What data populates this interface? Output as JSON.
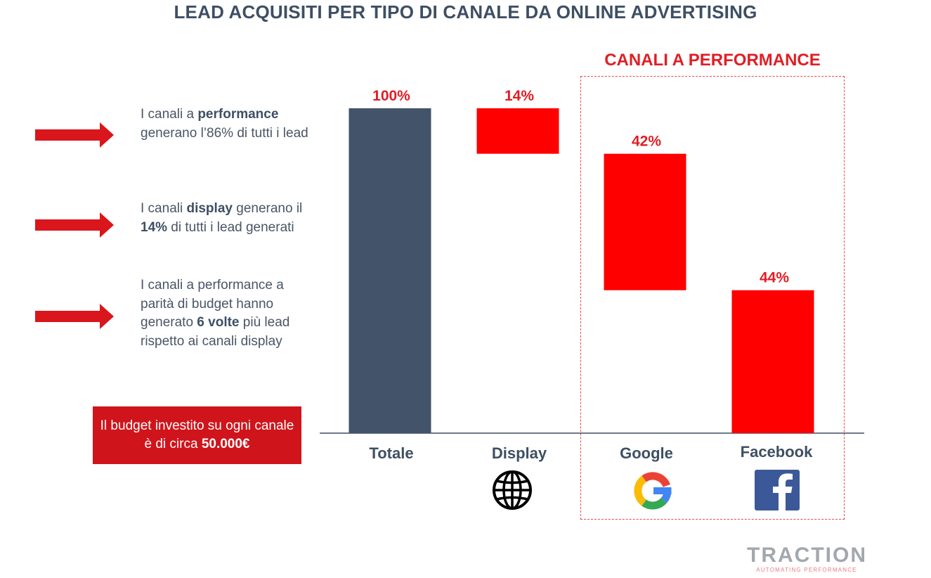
{
  "title": "LEAD ACQUISITI PER TIPO DI CANALE DA ONLINE ADVERTISING",
  "performance_group": {
    "label": "CANALI A PERFORMANCE",
    "members": [
      "Google",
      "Facebook"
    ]
  },
  "bullets": [
    {
      "parts": [
        {
          "text": "I canali a ",
          "bold": false
        },
        {
          "text": "performance",
          "bold": true
        },
        {
          "text": " generano l’86% di tutti i lead",
          "bold": false
        }
      ]
    },
    {
      "parts": [
        {
          "text": "I canali ",
          "bold": false
        },
        {
          "text": "display",
          "bold": true
        },
        {
          "text": " generano il ",
          "bold": false
        },
        {
          "text": "14%",
          "bold": true
        },
        {
          "text": " di tutti i lead generati",
          "bold": false
        }
      ]
    },
    {
      "parts": [
        {
          "text": "I canali a performance a parità di budget hanno generato ",
          "bold": false
        },
        {
          "text": "6 volte",
          "bold": true
        },
        {
          "text": " più lead rispetto ai canali display",
          "bold": false
        }
      ]
    }
  ],
  "budget_note": {
    "parts": [
      {
        "text": "Il budget investito su ogni canale è di circa ",
        "bold": false
      },
      {
        "text": "50.000€",
        "bold": true
      }
    ]
  },
  "chart_data": {
    "type": "bar",
    "subtype": "waterfall",
    "title": "LEAD ACQUISITI PER TIPO DI CANALE DA ONLINE ADVERTISING",
    "categories": [
      "Totale",
      "Display",
      "Google",
      "Facebook"
    ],
    "values": [
      100,
      14,
      42,
      44
    ],
    "data_labels": [
      "100%",
      "14%",
      "42%",
      "44%"
    ],
    "bar_kind": [
      "total",
      "decrement",
      "decrement",
      "decrement"
    ],
    "unit": "%",
    "ylim": [
      0,
      100
    ],
    "grid": false,
    "category_icons": [
      "",
      "globe-icon",
      "google-icon",
      "facebook-icon"
    ],
    "colors": {
      "total": "#43536a",
      "part": "#ff0000",
      "label": "#e01e24",
      "axis_label": "#3e4f63"
    }
  },
  "brand": {
    "name": "TRACTION",
    "tagline": "AUTOMATING PERFORMANCE"
  },
  "colors": {
    "accent": "#d0141b",
    "arrow": "#d9161c",
    "title": "#3e4f63"
  }
}
